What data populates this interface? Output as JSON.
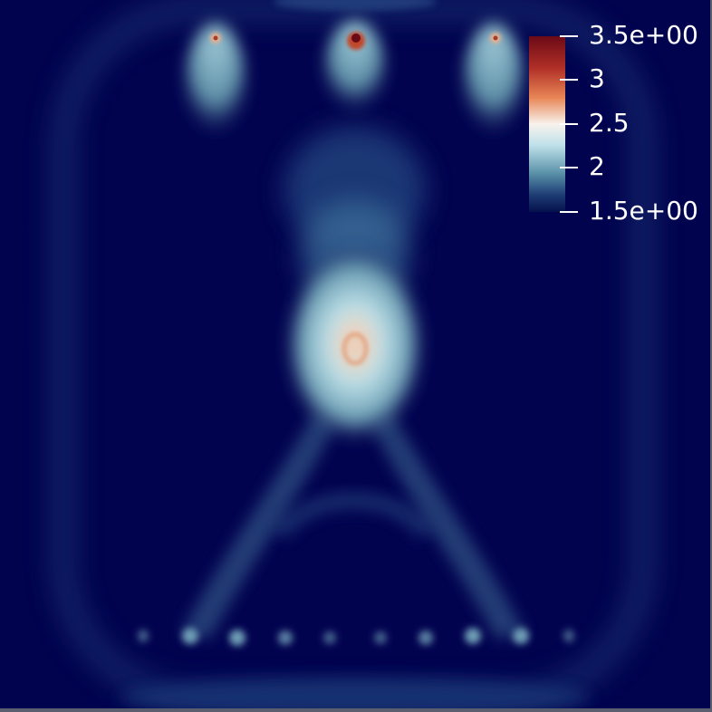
{
  "legend": {
    "max_label": "3.5e+00",
    "min_label": "1.5e+00",
    "tick_labels": [
      "3",
      "2.5",
      "2"
    ],
    "range": [
      1.5,
      3.5
    ],
    "tick_values": [
      3.5,
      3.0,
      2.5,
      2.0,
      1.5
    ]
  },
  "colors": {
    "background": "#02034f",
    "frame": "#5a5e6e",
    "low": "#05104c",
    "mid_low": "#5a91a8",
    "mid": "#dff3f8",
    "mid_high": "#e88656",
    "high": "#6b0a17",
    "text": "#ffffff"
  }
}
